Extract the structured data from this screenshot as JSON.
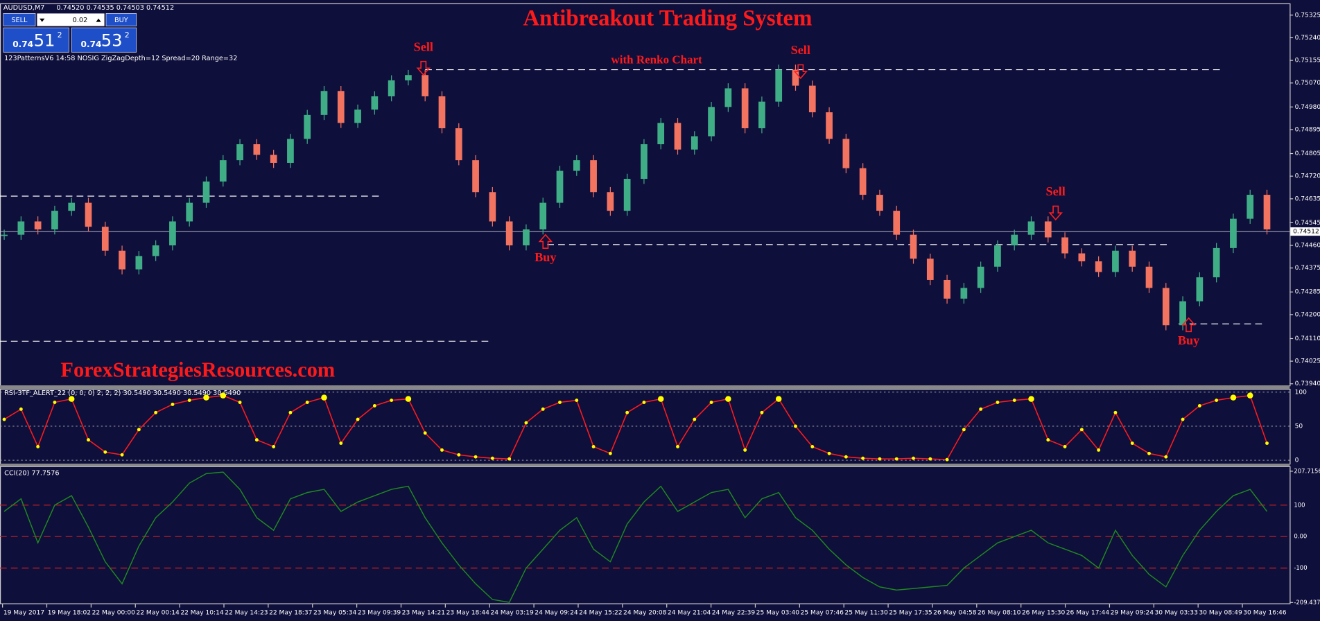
{
  "header": {
    "symbol": "AUDUSD,M7",
    "quote": "0.74520 0.74535 0.74503 0.74512"
  },
  "trade_panel": {
    "sell": "SELL",
    "buy": "BUY",
    "lot": "0.02",
    "sell_prefix": "0.74",
    "sell_big": "51",
    "sell_sup": "2",
    "buy_prefix": "0.74",
    "buy_big": "53",
    "buy_sup": "2"
  },
  "indicator_info": "123PatternsV6   14:58   NOSIG   ZigZagDepth=12   Spread=20   Range=32",
  "title": "Antibreakout Trading System",
  "subtitle": "with Renko Chart",
  "watermark": "ForexStrategiesResources.com",
  "annotations": [
    "Sell",
    "Sell",
    "Sell",
    "Buy",
    "Buy"
  ],
  "price_chart": {
    "type": "candlestick",
    "ylim": [
      0.73934,
      0.75366
    ],
    "yticks": [
      0.75325,
      {
        "value": 0.7524,
        "label": "0.75240"
      },
      0.75155,
      {
        "value": 0.7507,
        "label": "0.75070"
      },
      {
        "value": 0.7498,
        "label": "0.74980"
      },
      0.74895,
      0.74805,
      {
        "value": 0.7472,
        "label": "0.74720"
      },
      0.74635,
      0.74545,
      {
        "value": 0.7446,
        "label": "0.74460"
      },
      0.74375,
      0.74285,
      {
        "value": 0.742,
        "label": "0.74200"
      },
      {
        "value": 0.7411,
        "label": "0.74110"
      },
      0.74025,
      {
        "value": 0.7394,
        "label": "0.73940"
      }
    ],
    "current_price": 0.74512,
    "levels": [
      0.7512,
      0.74645,
      0.74463,
      0.74165,
      0.741
    ],
    "close": [
      0.745,
      0.7455,
      0.7452,
      0.7459,
      0.7462,
      0.7453,
      0.7444,
      0.7437,
      0.7442,
      0.7446,
      0.7455,
      0.7462,
      0.747,
      0.7478,
      0.7484,
      0.748,
      0.7477,
      0.7486,
      0.7495,
      0.7504,
      0.7492,
      0.7497,
      0.7502,
      0.7508,
      0.751,
      0.7502,
      0.749,
      0.7478,
      0.7466,
      0.7455,
      0.7446,
      0.7452,
      0.7462,
      0.7474,
      0.7478,
      0.7466,
      0.7459,
      0.7471,
      0.7484,
      0.7492,
      0.7482,
      0.7487,
      0.7498,
      0.7505,
      0.749,
      0.75,
      0.7512,
      0.7506,
      0.7496,
      0.7486,
      0.7475,
      0.7465,
      0.7459,
      0.745,
      0.7441,
      0.7433,
      0.7426,
      0.743,
      0.7438,
      0.7446,
      0.745,
      0.7455,
      0.7449,
      0.7443,
      0.744,
      0.7436,
      0.7444,
      0.7438,
      0.743,
      0.7416,
      0.7425,
      0.7434,
      0.7445,
      0.7456,
      0.7465,
      0.7452
    ]
  },
  "rsi_panel": {
    "label": "RSI-3TF_ALERT_22 (0, 0, 0) 2, 2, 2) 30.5490 30.5490 30.5490 30.5490",
    "ylim": [
      0,
      100
    ],
    "yticks": [
      0,
      50,
      100
    ],
    "values": [
      60,
      75,
      20,
      85,
      90,
      30,
      12,
      8,
      45,
      70,
      82,
      88,
      92,
      95,
      85,
      30,
      20,
      70,
      85,
      92,
      25,
      60,
      80,
      88,
      90,
      40,
      15,
      8,
      5,
      3,
      2,
      55,
      75,
      85,
      88,
      20,
      10,
      70,
      85,
      90,
      20,
      60,
      85,
      90,
      15,
      70,
      90,
      50,
      20,
      10,
      5,
      3,
      2,
      2,
      3,
      2,
      1,
      45,
      75,
      85,
      88,
      90,
      30,
      20,
      45,
      15,
      70,
      25,
      10,
      5,
      60,
      80,
      88,
      92,
      95,
      25
    ]
  },
  "cci_panel": {
    "label": "CCI(20) 77.7576",
    "ylim": [
      -209.4377,
      207.7156
    ],
    "yticks": [
      207.7156,
      100,
      {
        "value": 0,
        "label": "0.00"
      },
      -100,
      -209.4377
    ],
    "values": [
      80,
      120,
      -20,
      100,
      130,
      30,
      -80,
      -150,
      -30,
      60,
      110,
      170,
      200,
      205,
      150,
      60,
      20,
      120,
      140,
      150,
      80,
      110,
      130,
      150,
      160,
      60,
      -20,
      -90,
      -150,
      -200,
      -209,
      -100,
      -40,
      20,
      60,
      -40,
      -80,
      40,
      110,
      160,
      80,
      110,
      140,
      150,
      60,
      120,
      140,
      60,
      20,
      -40,
      -90,
      -130,
      -160,
      -170,
      -165,
      -160,
      -155,
      -100,
      -60,
      -20,
      0,
      20,
      -20,
      -40,
      -60,
      -100,
      20,
      -60,
      -120,
      -160,
      -60,
      20,
      80,
      130,
      150,
      80
    ]
  },
  "time_axis": [
    "19 May 2017",
    "19 May 18:02",
    "22 May 00:00",
    "22 May 00:14",
    "22 May 10:14",
    "22 May 14:23",
    "22 May 18:37",
    "23 May 05:34",
    "23 May 09:39",
    "23 May 14:21",
    "23 May 18:44",
    "24 May 03:19",
    "24 May 09:24",
    "24 May 15:22",
    "24 May 20:08",
    "24 May 21:04",
    "24 May 22:39",
    "25 May 03:40",
    "25 May 07:46",
    "25 May 11:30",
    "25 May 17:35",
    "26 May 04:58",
    "26 May 08:10",
    "26 May 15:30",
    "26 May 17:44",
    "29 May 09:24",
    "30 May 03:33",
    "30 May 08:49",
    "30 May 16:46"
  ]
}
